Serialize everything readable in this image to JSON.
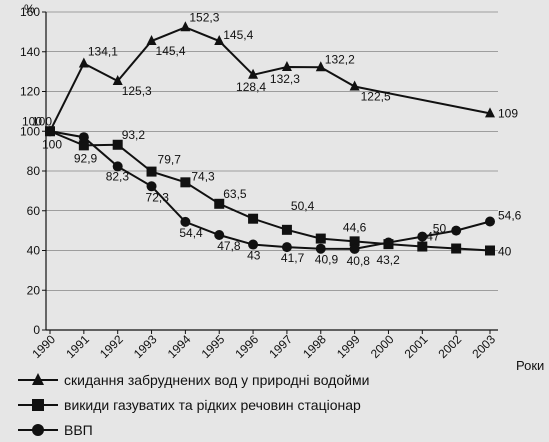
{
  "chart_data": {
    "type": "line",
    "ylabel": "%",
    "xlabel": "Роки",
    "ylim": [
      0,
      160
    ],
    "yticks": [
      0,
      20,
      40,
      60,
      80,
      100,
      120,
      140,
      160
    ],
    "ytick_labels": [
      "0",
      "20",
      "40",
      "60",
      "80",
      "100",
      "120",
      "140",
      "160"
    ],
    "categories": [
      "1990",
      "1991",
      "1992",
      "1993",
      "1994",
      "1995",
      "1996",
      "1997",
      "1998",
      "1999",
      "2000",
      "2001",
      "2002",
      "2003"
    ],
    "grid": true,
    "legend_position": "bottom",
    "series": [
      {
        "name": "скидання забруднених вод у природні водойми",
        "marker": "triangle",
        "values": [
          100,
          134.1,
          125.3,
          145.4,
          152.3,
          145.4,
          128.4,
          132.3,
          132.2,
          122.5,
          null,
          null,
          null,
          109
        ],
        "labels": [
          "100",
          "134,1",
          "125,3",
          "145,4",
          "152,3",
          "145,4",
          "128,4",
          "132,3",
          "132,2",
          "122,5",
          null,
          null,
          null,
          "109"
        ]
      },
      {
        "name": "викиди газуватих та рідких речовин стаціонар",
        "marker": "square",
        "values": [
          100,
          92.9,
          93.2,
          79.7,
          74.3,
          63.5,
          56,
          50.4,
          46,
          44.6,
          43.2,
          42,
          41,
          40
        ],
        "labels": [
          "100",
          "92,9",
          "93,2",
          "79,7",
          "74,3",
          "63,5",
          null,
          "50,4",
          null,
          "44,6",
          "43,2",
          null,
          null,
          "40"
        ]
      },
      {
        "name": "ВВП",
        "marker": "circle",
        "values": [
          100,
          97,
          82.3,
          72.3,
          54.4,
          47.8,
          43,
          41.7,
          40.9,
          40.8,
          44,
          47,
          50,
          54.6
        ],
        "labels": [
          "100",
          null,
          "82,3",
          "72,3",
          "54,4",
          "47,8",
          "43",
          "41,7",
          "40,9",
          "40,8",
          null,
          "47",
          "50",
          "54,6"
        ]
      }
    ]
  }
}
